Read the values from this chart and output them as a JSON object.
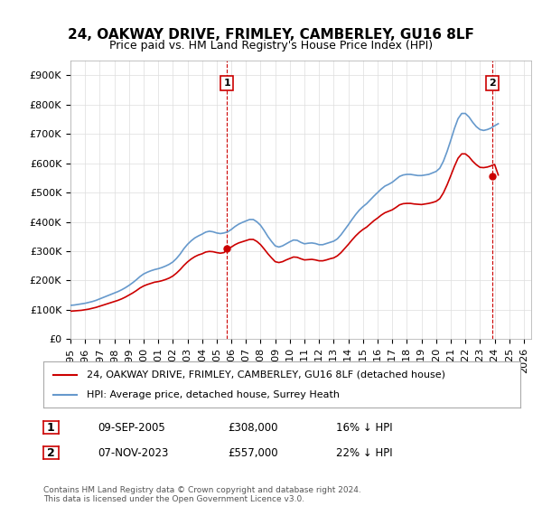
{
  "title": "24, OAKWAY DRIVE, FRIMLEY, CAMBERLEY, GU16 8LF",
  "subtitle": "Price paid vs. HM Land Registry's House Price Index (HPI)",
  "ylabel_ticks": [
    "£0",
    "£100K",
    "£200K",
    "£300K",
    "£400K",
    "£500K",
    "£600K",
    "£700K",
    "£800K",
    "£900K"
  ],
  "ytick_vals": [
    0,
    100000,
    200000,
    300000,
    400000,
    500000,
    600000,
    700000,
    800000,
    900000
  ],
  "ylim": [
    0,
    950000
  ],
  "xlim_start": 1995.0,
  "xlim_end": 2026.5,
  "marker1_x": 2005.69,
  "marker1_y": 308000,
  "marker1_label": "1",
  "marker2_x": 2023.85,
  "marker2_y": 557000,
  "marker2_label": "2",
  "sale_color": "#cc0000",
  "hpi_color": "#6699cc",
  "grid_color": "#dddddd",
  "bg_color": "#ffffff",
  "legend_line1": "24, OAKWAY DRIVE, FRIMLEY, CAMBERLEY, GU16 8LF (detached house)",
  "legend_line2": "HPI: Average price, detached house, Surrey Heath",
  "table_row1": [
    "1",
    "09-SEP-2005",
    "£308,000",
    "16% ↓ HPI"
  ],
  "table_row2": [
    "2",
    "07-NOV-2023",
    "£557,000",
    "22% ↓ HPI"
  ],
  "footer": "Contains HM Land Registry data © Crown copyright and database right 2024.\nThis data is licensed under the Open Government Licence v3.0.",
  "title_fontsize": 11,
  "subtitle_fontsize": 9,
  "tick_fontsize": 8,
  "hpi_data_x": [
    1995.0,
    1995.25,
    1995.5,
    1995.75,
    1996.0,
    1996.25,
    1996.5,
    1996.75,
    1997.0,
    1997.25,
    1997.5,
    1997.75,
    1998.0,
    1998.25,
    1998.5,
    1998.75,
    1999.0,
    1999.25,
    1999.5,
    1999.75,
    2000.0,
    2000.25,
    2000.5,
    2000.75,
    2001.0,
    2001.25,
    2001.5,
    2001.75,
    2002.0,
    2002.25,
    2002.5,
    2002.75,
    2003.0,
    2003.25,
    2003.5,
    2003.75,
    2004.0,
    2004.25,
    2004.5,
    2004.75,
    2005.0,
    2005.25,
    2005.5,
    2005.75,
    2006.0,
    2006.25,
    2006.5,
    2006.75,
    2007.0,
    2007.25,
    2007.5,
    2007.75,
    2008.0,
    2008.25,
    2008.5,
    2008.75,
    2009.0,
    2009.25,
    2009.5,
    2009.75,
    2010.0,
    2010.25,
    2010.5,
    2010.75,
    2011.0,
    2011.25,
    2011.5,
    2011.75,
    2012.0,
    2012.25,
    2012.5,
    2012.75,
    2013.0,
    2013.25,
    2013.5,
    2013.75,
    2014.0,
    2014.25,
    2014.5,
    2014.75,
    2015.0,
    2015.25,
    2015.5,
    2015.75,
    2016.0,
    2016.25,
    2016.5,
    2016.75,
    2017.0,
    2017.25,
    2017.5,
    2017.75,
    2018.0,
    2018.25,
    2018.5,
    2018.75,
    2019.0,
    2019.25,
    2019.5,
    2019.75,
    2020.0,
    2020.25,
    2020.5,
    2020.75,
    2021.0,
    2021.25,
    2021.5,
    2021.75,
    2022.0,
    2022.25,
    2022.5,
    2022.75,
    2023.0,
    2023.25,
    2023.5,
    2023.75,
    2024.0,
    2024.25
  ],
  "hpi_data_y": [
    115000,
    116000,
    118000,
    120000,
    122000,
    125000,
    128000,
    132000,
    137000,
    142000,
    147000,
    152000,
    157000,
    162000,
    168000,
    175000,
    183000,
    192000,
    202000,
    213000,
    222000,
    228000,
    233000,
    237000,
    240000,
    244000,
    249000,
    255000,
    263000,
    275000,
    290000,
    308000,
    323000,
    335000,
    345000,
    352000,
    358000,
    365000,
    368000,
    366000,
    362000,
    360000,
    362000,
    366000,
    374000,
    384000,
    392000,
    398000,
    403000,
    408000,
    408000,
    400000,
    388000,
    370000,
    350000,
    333000,
    318000,
    314000,
    318000,
    325000,
    332000,
    338000,
    337000,
    330000,
    325000,
    327000,
    328000,
    326000,
    322000,
    322000,
    326000,
    330000,
    334000,
    342000,
    356000,
    373000,
    390000,
    408000,
    425000,
    440000,
    452000,
    462000,
    475000,
    488000,
    500000,
    512000,
    522000,
    528000,
    535000,
    545000,
    555000,
    560000,
    562000,
    562000,
    560000,
    558000,
    558000,
    560000,
    562000,
    567000,
    572000,
    583000,
    607000,
    640000,
    678000,
    718000,
    752000,
    770000,
    770000,
    758000,
    740000,
    725000,
    715000,
    712000,
    715000,
    720000,
    728000,
    735000
  ],
  "sale_data_x": [
    1995.0,
    1995.25,
    1995.5,
    1995.75,
    1996.0,
    1996.25,
    1996.5,
    1996.75,
    1997.0,
    1997.25,
    1997.5,
    1997.75,
    1998.0,
    1998.25,
    1998.5,
    1998.75,
    1999.0,
    1999.25,
    1999.5,
    1999.75,
    2000.0,
    2000.25,
    2000.5,
    2000.75,
    2001.0,
    2001.25,
    2001.5,
    2001.75,
    2002.0,
    2002.25,
    2002.5,
    2002.75,
    2003.0,
    2003.25,
    2003.5,
    2003.75,
    2004.0,
    2004.25,
    2004.5,
    2004.75,
    2005.0,
    2005.25,
    2005.5,
    2005.75,
    2006.0,
    2006.25,
    2006.5,
    2006.75,
    2007.0,
    2007.25,
    2007.5,
    2007.75,
    2008.0,
    2008.25,
    2008.5,
    2008.75,
    2009.0,
    2009.25,
    2009.5,
    2009.75,
    2010.0,
    2010.25,
    2010.5,
    2010.75,
    2011.0,
    2011.25,
    2011.5,
    2011.75,
    2012.0,
    2012.25,
    2012.5,
    2012.75,
    2013.0,
    2013.25,
    2013.5,
    2013.75,
    2014.0,
    2014.25,
    2014.5,
    2014.75,
    2015.0,
    2015.25,
    2015.5,
    2015.75,
    2016.0,
    2016.25,
    2016.5,
    2016.75,
    2017.0,
    2017.25,
    2017.5,
    2017.75,
    2018.0,
    2018.25,
    2018.5,
    2018.75,
    2019.0,
    2019.25,
    2019.5,
    2019.75,
    2020.0,
    2020.25,
    2020.5,
    2020.75,
    2021.0,
    2021.25,
    2021.5,
    2021.75,
    2022.0,
    2022.25,
    2022.5,
    2022.75,
    2023.0,
    2023.25,
    2023.5,
    2023.75,
    2024.0,
    2024.25
  ],
  "sale_data_y": [
    95000,
    96000,
    97000,
    98000,
    100000,
    102000,
    105000,
    108000,
    112000,
    116000,
    120000,
    124000,
    128000,
    132000,
    137000,
    143000,
    150000,
    157000,
    165000,
    174000,
    181000,
    186000,
    190000,
    194000,
    196000,
    199000,
    203000,
    208000,
    215000,
    225000,
    237000,
    251000,
    263000,
    273000,
    281000,
    287000,
    291000,
    297000,
    299000,
    298000,
    295000,
    293000,
    295000,
    308000,
    314000,
    322000,
    328000,
    332000,
    336000,
    340000,
    340000,
    333000,
    322000,
    307000,
    291000,
    277000,
    264000,
    261000,
    264000,
    270000,
    275000,
    280000,
    279000,
    274000,
    270000,
    271000,
    272000,
    270000,
    267000,
    267000,
    270000,
    274000,
    277000,
    284000,
    295000,
    309000,
    323000,
    338000,
    352000,
    364000,
    374000,
    382000,
    393000,
    404000,
    413000,
    423000,
    431000,
    436000,
    441000,
    449000,
    458000,
    462000,
    463000,
    463000,
    461000,
    460000,
    459000,
    461000,
    463000,
    466000,
    470000,
    479000,
    499000,
    526000,
    557000,
    589000,
    617000,
    632000,
    632000,
    622000,
    607000,
    595000,
    586000,
    585000,
    587000,
    591000,
    596000,
    560000
  ]
}
